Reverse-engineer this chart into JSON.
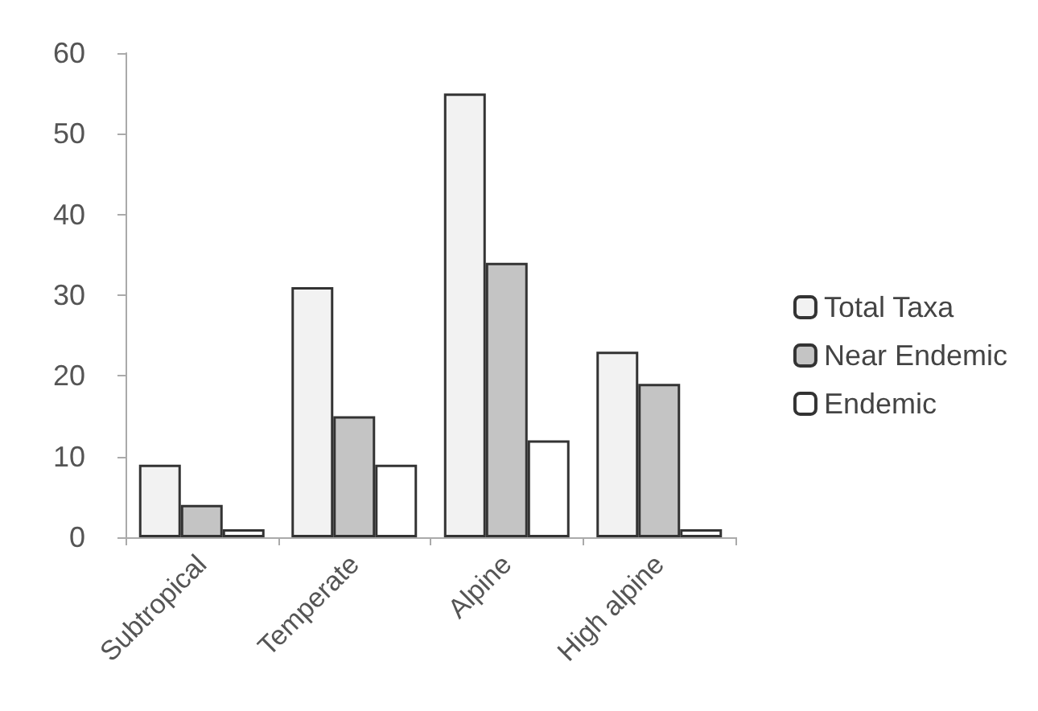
{
  "chart_data": {
    "type": "bar",
    "categories": [
      "Subtropical",
      "Temperate",
      "Alpine",
      "High alpine"
    ],
    "series": [
      {
        "name": "Total Taxa",
        "color": "#f2f2f2",
        "values": [
          9,
          31,
          55,
          23
        ]
      },
      {
        "name": "Near Endemic",
        "color": "#c4c4c4",
        "values": [
          4,
          15,
          34,
          19
        ]
      },
      {
        "name": "Endemic",
        "color": "#ffffff",
        "values": [
          1,
          9,
          12,
          1
        ]
      }
    ],
    "ylim": [
      0,
      60
    ],
    "yticks": [
      0,
      10,
      20,
      30,
      40,
      50,
      60
    ],
    "grid": false,
    "legend": "right"
  }
}
